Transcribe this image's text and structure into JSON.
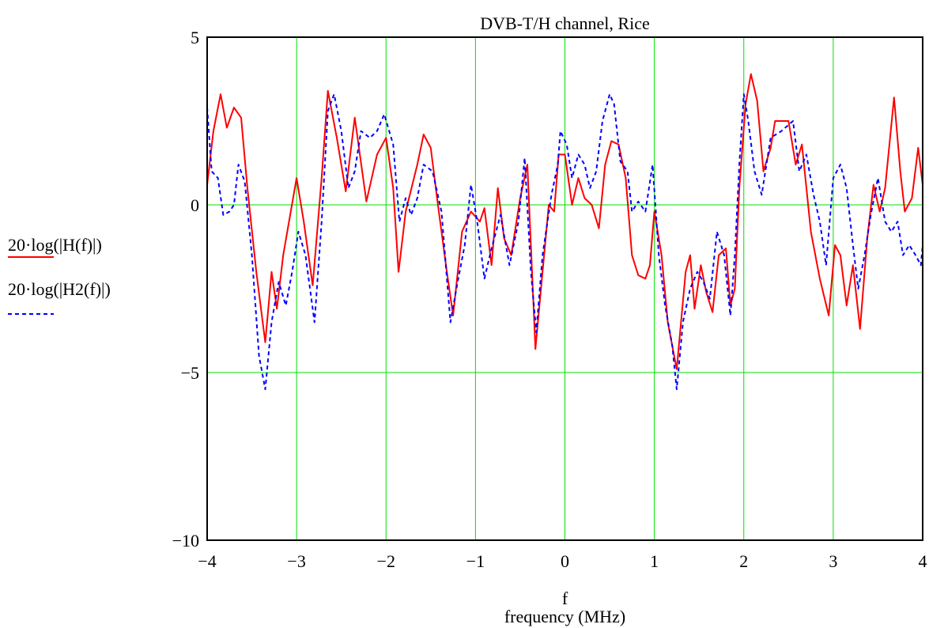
{
  "chart_data": {
    "type": "line",
    "title": "DVB-T/H channel, Rice",
    "xlabel": "f",
    "xlabel2": "frequency (MHz)",
    "ylabel": "",
    "xlim": [
      -4,
      4
    ],
    "ylim": [
      -10,
      5
    ],
    "xticks": [
      -4,
      -3,
      -2,
      -1,
      0,
      1,
      2,
      3,
      4
    ],
    "xtick_labels": [
      "−4",
      "−3",
      "−2",
      "−1",
      "0",
      "1",
      "2",
      "3",
      "4"
    ],
    "yticks": [
      -10,
      -5,
      0,
      5
    ],
    "ytick_labels": [
      "−10",
      "−5",
      "0",
      "5"
    ],
    "grid": true,
    "legend_position": "left",
    "series": [
      {
        "name": "20·log(|H(f)|)",
        "color": "#ff0000",
        "dash": "solid",
        "points": [
          [
            -4.0,
            0.6
          ],
          [
            -3.93,
            2.2
          ],
          [
            -3.85,
            3.3
          ],
          [
            -3.78,
            2.3
          ],
          [
            -3.7,
            2.9
          ],
          [
            -3.62,
            2.6
          ],
          [
            -3.55,
            0.5
          ],
          [
            -3.45,
            -2.0
          ],
          [
            -3.35,
            -4.1
          ],
          [
            -3.28,
            -2.0
          ],
          [
            -3.22,
            -3.1
          ],
          [
            -3.15,
            -1.5
          ],
          [
            -3.0,
            0.8
          ],
          [
            -2.92,
            -0.5
          ],
          [
            -2.82,
            -2.4
          ],
          [
            -2.72,
            0.8
          ],
          [
            -2.65,
            3.4
          ],
          [
            -2.55,
            2.0
          ],
          [
            -2.45,
            0.4
          ],
          [
            -2.35,
            2.6
          ],
          [
            -2.22,
            0.1
          ],
          [
            -2.1,
            1.5
          ],
          [
            -2.0,
            2.0
          ],
          [
            -1.92,
            0.5
          ],
          [
            -1.86,
            -2.0
          ],
          [
            -1.78,
            -0.2
          ],
          [
            -1.65,
            1.2
          ],
          [
            -1.58,
            2.1
          ],
          [
            -1.5,
            1.7
          ],
          [
            -1.42,
            0.0
          ],
          [
            -1.32,
            -2.0
          ],
          [
            -1.25,
            -3.3
          ],
          [
            -1.15,
            -0.8
          ],
          [
            -1.05,
            -0.2
          ],
          [
            -0.95,
            -0.5
          ],
          [
            -0.9,
            -0.1
          ],
          [
            -0.82,
            -1.8
          ],
          [
            -0.75,
            0.5
          ],
          [
            -0.68,
            -1.0
          ],
          [
            -0.6,
            -1.5
          ],
          [
            -0.5,
            0.2
          ],
          [
            -0.42,
            1.2
          ],
          [
            -0.33,
            -4.3
          ],
          [
            -0.25,
            -2.0
          ],
          [
            -0.18,
            0.0
          ],
          [
            -0.12,
            -0.2
          ],
          [
            -0.07,
            1.5
          ],
          [
            0.0,
            1.5
          ],
          [
            0.08,
            0.0
          ],
          [
            0.15,
            0.8
          ],
          [
            0.22,
            0.2
          ],
          [
            0.3,
            0.0
          ],
          [
            0.38,
            -0.7
          ],
          [
            0.45,
            1.2
          ],
          [
            0.52,
            1.9
          ],
          [
            0.6,
            1.8
          ],
          [
            0.68,
            0.8
          ],
          [
            0.75,
            -1.5
          ],
          [
            0.82,
            -2.1
          ],
          [
            0.9,
            -2.2
          ],
          [
            0.95,
            -1.8
          ],
          [
            1.0,
            -0.2
          ],
          [
            1.08,
            -1.5
          ],
          [
            1.15,
            -3.5
          ],
          [
            1.25,
            -4.9
          ],
          [
            1.35,
            -2.0
          ],
          [
            1.4,
            -1.5
          ],
          [
            1.45,
            -3.1
          ],
          [
            1.52,
            -1.8
          ],
          [
            1.58,
            -2.6
          ],
          [
            1.65,
            -3.2
          ],
          [
            1.72,
            -1.5
          ],
          [
            1.8,
            -1.3
          ],
          [
            1.85,
            -3.0
          ],
          [
            1.9,
            -2.5
          ],
          [
            1.95,
            0.5
          ],
          [
            2.02,
            3.0
          ],
          [
            2.08,
            3.9
          ],
          [
            2.15,
            3.1
          ],
          [
            2.22,
            1.0
          ],
          [
            2.3,
            1.7
          ],
          [
            2.35,
            2.5
          ],
          [
            2.5,
            2.5
          ],
          [
            2.58,
            1.2
          ],
          [
            2.65,
            1.8
          ],
          [
            2.75,
            -0.8
          ],
          [
            2.85,
            -2.2
          ],
          [
            2.95,
            -3.3
          ],
          [
            3.02,
            -1.2
          ],
          [
            3.08,
            -1.5
          ],
          [
            3.15,
            -3.0
          ],
          [
            3.22,
            -1.8
          ],
          [
            3.3,
            -3.7
          ],
          [
            3.38,
            -1.0
          ],
          [
            3.45,
            0.6
          ],
          [
            3.52,
            -0.2
          ],
          [
            3.58,
            0.5
          ],
          [
            3.68,
            3.2
          ],
          [
            3.75,
            1.0
          ],
          [
            3.8,
            -0.2
          ],
          [
            3.88,
            0.2
          ],
          [
            3.95,
            1.7
          ],
          [
            4.0,
            0.6
          ]
        ]
      },
      {
        "name": "20·log(|H2(f)|)",
        "color": "#0000ff",
        "dash": "dashed",
        "points": [
          [
            -4.0,
            2.9
          ],
          [
            -3.95,
            1.0
          ],
          [
            -3.88,
            0.8
          ],
          [
            -3.82,
            -0.3
          ],
          [
            -3.75,
            -0.2
          ],
          [
            -3.7,
            0.0
          ],
          [
            -3.65,
            1.2
          ],
          [
            -3.58,
            0.7
          ],
          [
            -3.5,
            -1.5
          ],
          [
            -3.42,
            -4.5
          ],
          [
            -3.35,
            -5.5
          ],
          [
            -3.28,
            -3.5
          ],
          [
            -3.2,
            -2.3
          ],
          [
            -3.12,
            -3.0
          ],
          [
            -3.05,
            -2.0
          ],
          [
            -2.98,
            -0.8
          ],
          [
            -2.9,
            -1.5
          ],
          [
            -2.8,
            -3.5
          ],
          [
            -2.72,
            -0.5
          ],
          [
            -2.65,
            2.8
          ],
          [
            -2.58,
            3.3
          ],
          [
            -2.5,
            2.2
          ],
          [
            -2.42,
            0.5
          ],
          [
            -2.35,
            1.0
          ],
          [
            -2.28,
            2.2
          ],
          [
            -2.18,
            2.0
          ],
          [
            -2.1,
            2.2
          ],
          [
            -2.02,
            2.7
          ],
          [
            -1.92,
            1.8
          ],
          [
            -1.85,
            -0.5
          ],
          [
            -1.78,
            0.2
          ],
          [
            -1.72,
            -0.3
          ],
          [
            -1.65,
            0.2
          ],
          [
            -1.58,
            1.2
          ],
          [
            -1.48,
            1.0
          ],
          [
            -1.38,
            -0.2
          ],
          [
            -1.28,
            -3.5
          ],
          [
            -1.2,
            -2.3
          ],
          [
            -1.12,
            -1.2
          ],
          [
            -1.05,
            0.6
          ],
          [
            -0.98,
            -0.5
          ],
          [
            -0.9,
            -2.2
          ],
          [
            -0.82,
            -1.3
          ],
          [
            -0.72,
            -0.3
          ],
          [
            -0.62,
            -1.8
          ],
          [
            -0.52,
            -0.5
          ],
          [
            -0.45,
            1.4
          ],
          [
            -0.38,
            -2.0
          ],
          [
            -0.32,
            -3.8
          ],
          [
            -0.25,
            -1.5
          ],
          [
            -0.15,
            0.3
          ],
          [
            -0.08,
            1.2
          ],
          [
            -0.05,
            2.2
          ],
          [
            0.02,
            1.8
          ],
          [
            0.08,
            0.8
          ],
          [
            0.15,
            1.5
          ],
          [
            0.22,
            1.2
          ],
          [
            0.28,
            0.5
          ],
          [
            0.35,
            1.0
          ],
          [
            0.42,
            2.5
          ],
          [
            0.5,
            3.3
          ],
          [
            0.55,
            3.0
          ],
          [
            0.62,
            1.3
          ],
          [
            0.7,
            1.0
          ],
          [
            0.75,
            -0.2
          ],
          [
            0.82,
            0.1
          ],
          [
            0.9,
            -0.2
          ],
          [
            0.98,
            1.2
          ],
          [
            1.05,
            -1.5
          ],
          [
            1.12,
            -3.0
          ],
          [
            1.2,
            -4.2
          ],
          [
            1.25,
            -5.5
          ],
          [
            1.32,
            -3.5
          ],
          [
            1.4,
            -2.5
          ],
          [
            1.48,
            -2.0
          ],
          [
            1.55,
            -2.3
          ],
          [
            1.62,
            -2.8
          ],
          [
            1.7,
            -0.8
          ],
          [
            1.78,
            -1.5
          ],
          [
            1.85,
            -3.3
          ],
          [
            1.9,
            -1.5
          ],
          [
            1.95,
            1.2
          ],
          [
            2.0,
            3.3
          ],
          [
            2.05,
            2.5
          ],
          [
            2.12,
            1.0
          ],
          [
            2.2,
            0.3
          ],
          [
            2.3,
            2.0
          ],
          [
            2.42,
            2.2
          ],
          [
            2.55,
            2.5
          ],
          [
            2.62,
            1.0
          ],
          [
            2.7,
            1.5
          ],
          [
            2.78,
            0.3
          ],
          [
            2.85,
            -0.5
          ],
          [
            2.92,
            -1.8
          ],
          [
            3.0,
            0.8
          ],
          [
            3.08,
            1.2
          ],
          [
            3.15,
            0.5
          ],
          [
            3.22,
            -1.2
          ],
          [
            3.28,
            -2.5
          ],
          [
            3.35,
            -1.5
          ],
          [
            3.42,
            -0.3
          ],
          [
            3.5,
            0.8
          ],
          [
            3.58,
            -0.5
          ],
          [
            3.65,
            -0.8
          ],
          [
            3.72,
            -0.5
          ],
          [
            3.78,
            -1.5
          ],
          [
            3.85,
            -1.2
          ],
          [
            3.92,
            -1.5
          ],
          [
            3.98,
            -1.8
          ],
          [
            4.0,
            -1.2
          ]
        ]
      }
    ]
  }
}
